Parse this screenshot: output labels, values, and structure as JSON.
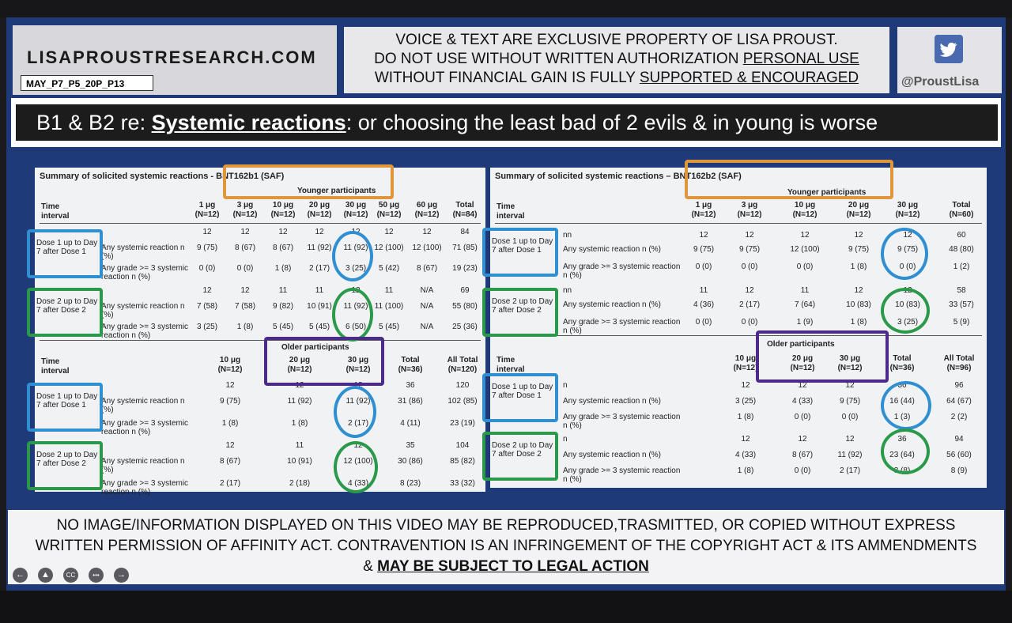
{
  "header": {
    "site": "LISAPROUSTRESEARCH.COM",
    "code": "MAY_P7_P5_20P_P13",
    "notice_line1": "VOICE & TEXT ARE EXCLUSIVE PROPERTY OF LISA PROUST.",
    "notice_line2_a": "DO NOT USE WITHOUT WRITTEN AUTHORIZATION ",
    "notice_line2_b": "PERSONAL USE",
    "notice_line3_a": "WITHOUT FINANCIAL GAIN IS FULLY ",
    "notice_line3_b": "SUPPORTED & ENCOURAGED",
    "twitter_handle": "@ProustLisa"
  },
  "banner": {
    "prefix": "B1 & B2 re: ",
    "emph": "Systemic reactions",
    "suffix": ": or choosing the least bad of 2 evils & in young is worse"
  },
  "left": {
    "title": "Summary of solicited systemic reactions - BNT162b1 (SAF)",
    "younger_label": "Younger participants",
    "older_label": "Older participants",
    "time_interval": "Time interval",
    "young_cols": [
      "1 μg (N=12)",
      "3 μg (N=12)",
      "10 μg (N=12)",
      "20 μg (N=12)",
      "30 μg (N=12)",
      "50 μg (N=12)",
      "60 μg (N=12)",
      "Total (N=84)"
    ],
    "young_rows": [
      {
        "label": "",
        "vals": [
          "12",
          "12",
          "12",
          "12",
          "12",
          "12",
          "12",
          "84"
        ]
      },
      {
        "label": "Any systemic reaction n (%)",
        "vals": [
          "9 (75)",
          "8 (67)",
          "8 (67)",
          "11 (92)",
          "11 (92)",
          "12 (100)",
          "12 (100)",
          "71 (85)"
        ]
      },
      {
        "label": "Any grade >= 3 systemic reaction n (%)",
        "vals": [
          "0 (0)",
          "0 (0)",
          "1 (8)",
          "2 (17)",
          "3 (25)",
          "5 (42)",
          "8 (67)",
          "19 (23)"
        ]
      },
      {
        "label": "",
        "vals": [
          "12",
          "12",
          "11",
          "11",
          "12",
          "11",
          "N/A",
          "69"
        ]
      },
      {
        "label": "Any systemic reaction n (%)",
        "vals": [
          "7 (58)",
          "7 (58)",
          "9 (82)",
          "10 (91)",
          "11 (92)",
          "11 (100)",
          "N/A",
          "55 (80)"
        ]
      },
      {
        "label": "Any grade >= 3 systemic reaction n (%)",
        "vals": [
          "3 (25)",
          "1 (8)",
          "5 (45)",
          "5 (45)",
          "6 (50)",
          "5 (45)",
          "N/A",
          "25 (36)"
        ]
      }
    ],
    "old_cols": [
      "10 μg (N=12)",
      "20 μg (N=12)",
      "30 μg (N=12)",
      "Total (N=36)",
      "All Total (N=120)"
    ],
    "old_rows": [
      {
        "label": "",
        "vals": [
          "12",
          "12",
          "12",
          "36",
          "120"
        ]
      },
      {
        "label": "Any systemic reaction n (%)",
        "vals": [
          "9 (75)",
          "11 (92)",
          "11 (92)",
          "31 (86)",
          "102 (85)"
        ]
      },
      {
        "label": "Any grade >= 3 systemic reaction n (%)",
        "vals": [
          "1 (8)",
          "1 (8)",
          "2 (17)",
          "4 (11)",
          "23 (19)"
        ]
      },
      {
        "label": "",
        "vals": [
          "12",
          "11",
          "12",
          "35",
          "104"
        ]
      },
      {
        "label": "Any systemic reaction n (%)",
        "vals": [
          "8 (67)",
          "10 (91)",
          "12 (100)",
          "30 (86)",
          "85 (82)"
        ]
      },
      {
        "label": "Any grade >= 3 systemic reaction n (%)",
        "vals": [
          "2 (17)",
          "2 (18)",
          "4 (33)",
          "8 (23)",
          "33 (32)"
        ]
      }
    ],
    "doses": [
      "Dose 1 up to Day 7 after Dose 1",
      "Dose 2 up to Day 7 after Dose 2",
      "Dose 1 up to Day 7 after Dose 1",
      "Dose 2 up to Day 7 after Dose 2"
    ]
  },
  "right": {
    "title": "Summary of solicited systemic reactions – BNT162b2 (SAF)",
    "younger_label": "Younger participants",
    "older_label": "Older participants",
    "time_interval": "Time interval",
    "young_cols": [
      "1 μg (N=12)",
      "3 μg (N=12)",
      "10 μg (N=12)",
      "20 μg (N=12)",
      "30 μg (N=12)",
      "Total (N=60)"
    ],
    "young_rows": [
      {
        "label": "nn",
        "vals": [
          "12",
          "12",
          "12",
          "12",
          "12",
          "60"
        ]
      },
      {
        "label": "Any systemic reaction n (%)",
        "vals": [
          "9 (75)",
          "9 (75)",
          "12 (100)",
          "9 (75)",
          "9 (75)",
          "48 (80)"
        ]
      },
      {
        "label": "Any grade >= 3 systemic reaction n (%)",
        "vals": [
          "0 (0)",
          "0 (0)",
          "0 (0)",
          "1 (8)",
          "0 (0)",
          "1 (2)"
        ]
      },
      {
        "label": "nn",
        "vals": [
          "11",
          "12",
          "11",
          "12",
          "12",
          "58"
        ]
      },
      {
        "label": "Any systemic reaction n (%)",
        "vals": [
          "4 (36)",
          "2 (17)",
          "7 (64)",
          "10 (83)",
          "10 (83)",
          "33 (57)"
        ]
      },
      {
        "label": "Any grade >= 3 systemic reaction n (%)",
        "vals": [
          "0 (0)",
          "0 (0)",
          "1 (9)",
          "1 (8)",
          "3 (25)",
          "5 (9)"
        ]
      }
    ],
    "old_cols": [
      "10 μg (N=12)",
      "20 μg (N=12)",
      "30 μg (N=12)",
      "Total (N=36)",
      "All Total (N=96)"
    ],
    "old_rows": [
      {
        "label": "n",
        "vals": [
          "12",
          "12",
          "12",
          "36",
          "96"
        ]
      },
      {
        "label": "Any systemic reaction n (%)",
        "vals": [
          "3 (25)",
          "4 (33)",
          "9 (75)",
          "16 (44)",
          "64 (67)"
        ]
      },
      {
        "label": "Any grade >= 3 systemic reaction n (%)",
        "vals": [
          "1 (8)",
          "0 (0)",
          "0 (0)",
          "1 (3)",
          "2 (2)"
        ]
      },
      {
        "label": "n",
        "vals": [
          "12",
          "12",
          "12",
          "36",
          "94"
        ]
      },
      {
        "label": "Any systemic reaction n (%)",
        "vals": [
          "4 (33)",
          "8 (67)",
          "11 (92)",
          "23 (64)",
          "56 (60)"
        ]
      },
      {
        "label": "Any grade >= 3 systemic reaction n (%)",
        "vals": [
          "1 (8)",
          "0 (0)",
          "2 (17)",
          "3 (8)",
          "8 (9)"
        ]
      }
    ],
    "doses": [
      "Dose 1 up to Day 7 after Dose 1",
      "Dose 2 up to Day 7 after Dose 2",
      "Dose 1 up to Day 7 after Dose 1",
      "Dose 2 up to Day 7 after Dose 2"
    ]
  },
  "footer": {
    "line1": "NO IMAGE/INFORMATION DISPLAYED ON THIS VIDEO MAY BE REPRODUCED,TRASMITTED, OR COPIED WITHOUT EXPRESS",
    "line2": "WRITTEN PERMISSION OF AFFINITY ACT.  CONTRAVENTION IS AN INFRINGEMENT OF THE COPYRIGHT ACT & ITS AMMENDMENTS",
    "line3_a": "& ",
    "line3_b": "MAY BE SUBJECT TO LEGAL ACTION"
  },
  "controls": [
    {
      "icon": "back-icon",
      "glyph": "←"
    },
    {
      "icon": "triangle-icon",
      "glyph": "▲"
    },
    {
      "icon": "cc-icon",
      "glyph": "CC"
    },
    {
      "icon": "more-icon",
      "glyph": "•••"
    },
    {
      "icon": "forward-icon",
      "glyph": "→"
    }
  ],
  "colors": {
    "blue": "#2f8fd0",
    "green": "#2a9a4a",
    "orange": "#e0963a",
    "purple": "#4b2a8a",
    "navy": "#1f3a78"
  }
}
